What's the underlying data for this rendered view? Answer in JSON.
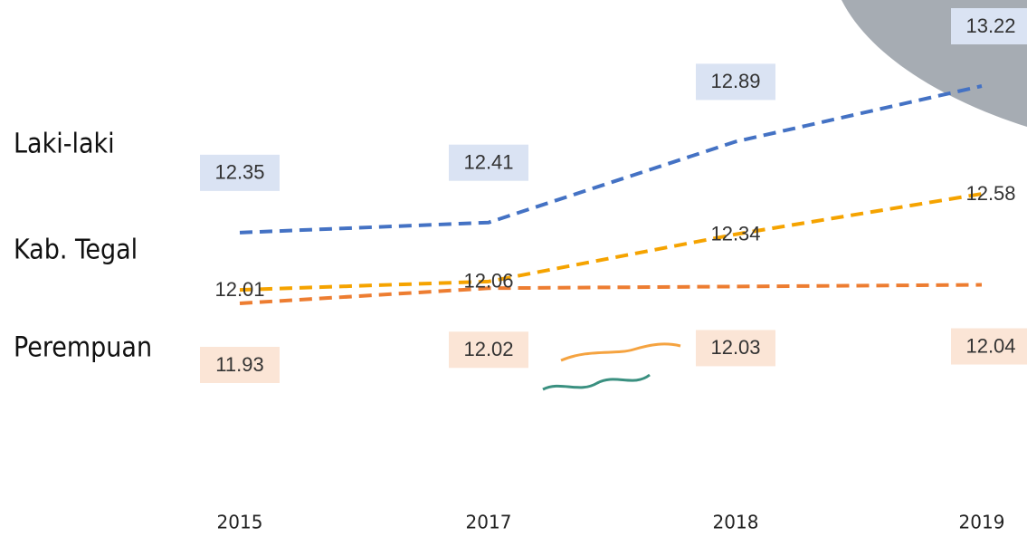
{
  "chart_data": {
    "type": "line",
    "categories": [
      "2015",
      "2017",
      "2018",
      "2019"
    ],
    "series": [
      {
        "name": "Laki-laki",
        "color": "#4472c4",
        "label_fill": "#dae3f3",
        "values": [
          12.35,
          12.41,
          12.89,
          13.22
        ]
      },
      {
        "name": "Kab. Tegal",
        "color": "#f5a300",
        "values": [
          12.01,
          12.06,
          12.34,
          12.58
        ]
      },
      {
        "name": "Perempuan",
        "color": "#ed7d31",
        "label_fill": "#fbe5d6",
        "values": [
          11.93,
          12.02,
          12.03,
          12.04
        ]
      }
    ]
  }
}
